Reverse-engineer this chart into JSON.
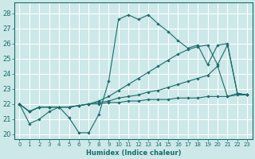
{
  "xlabel": "Humidex (Indice chaleur)",
  "xlim": [
    -0.5,
    23.5
  ],
  "ylim": [
    19.7,
    28.7
  ],
  "yticks": [
    20,
    21,
    22,
    23,
    24,
    25,
    26,
    27,
    28
  ],
  "xticks": [
    0,
    1,
    2,
    3,
    4,
    5,
    6,
    7,
    8,
    9,
    10,
    11,
    12,
    13,
    14,
    15,
    16,
    17,
    18,
    19,
    20,
    21,
    22,
    23
  ],
  "bg_color": "#cce8e8",
  "grid_color": "#ffffff",
  "line_color": "#1a6b6b",
  "lines": [
    {
      "x": [
        0,
        1,
        2,
        3,
        4,
        5,
        6,
        7,
        8,
        9,
        10,
        11,
        12,
        13,
        14,
        15,
        16,
        17,
        18,
        19,
        20,
        21,
        22,
        23
      ],
      "y": [
        22.0,
        20.7,
        21.0,
        21.5,
        21.8,
        21.1,
        20.1,
        20.1,
        21.3,
        23.5,
        27.6,
        27.9,
        27.6,
        27.9,
        27.3,
        26.8,
        26.2,
        25.7,
        25.9,
        24.6,
        25.9,
        26.0,
        22.7,
        22.6
      ]
    },
    {
      "x": [
        0,
        1,
        2,
        3,
        4,
        5,
        6,
        7,
        8,
        9,
        10,
        11,
        12,
        13,
        14,
        15,
        16,
        17,
        18,
        19,
        20,
        21,
        22,
        23
      ],
      "y": [
        22.0,
        21.5,
        21.8,
        21.8,
        21.8,
        21.8,
        21.9,
        22.0,
        22.2,
        22.5,
        22.9,
        23.3,
        23.7,
        24.1,
        24.5,
        24.9,
        25.3,
        25.6,
        25.8,
        25.9,
        24.6,
        25.9,
        22.7,
        22.6
      ]
    },
    {
      "x": [
        0,
        1,
        2,
        3,
        4,
        5,
        6,
        7,
        8,
        9,
        10,
        11,
        12,
        13,
        14,
        15,
        16,
        17,
        18,
        19,
        20,
        21,
        22,
        23
      ],
      "y": [
        22.0,
        21.5,
        21.8,
        21.8,
        21.8,
        21.8,
        21.9,
        22.0,
        22.1,
        22.2,
        22.4,
        22.5,
        22.6,
        22.8,
        22.9,
        23.1,
        23.3,
        23.5,
        23.7,
        23.9,
        24.5,
        22.5,
        22.7,
        22.6
      ]
    },
    {
      "x": [
        0,
        1,
        2,
        3,
        4,
        5,
        6,
        7,
        8,
        9,
        10,
        11,
        12,
        13,
        14,
        15,
        16,
        17,
        18,
        19,
        20,
        21,
        22,
        23
      ],
      "y": [
        22.0,
        21.5,
        21.8,
        21.8,
        21.8,
        21.8,
        21.9,
        22.0,
        22.0,
        22.1,
        22.1,
        22.2,
        22.2,
        22.3,
        22.3,
        22.3,
        22.4,
        22.4,
        22.4,
        22.5,
        22.5,
        22.5,
        22.6,
        22.6
      ]
    }
  ]
}
